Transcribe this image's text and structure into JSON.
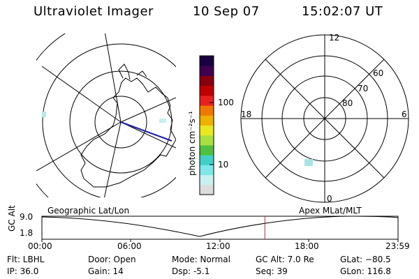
{
  "header": {
    "title": "Ultraviolet Imager",
    "date": "10 Sep 07",
    "time": "15:02:07 UT"
  },
  "colorbar": {
    "label": "photon cm⁻²s⁻¹",
    "ticks": [
      "100",
      "10"
    ],
    "colors": [
      "#dcdcdc",
      "#c8f0f0",
      "#7ee8e8",
      "#40d0c8",
      "#50c040",
      "#a8e040",
      "#e8e820",
      "#f0b000",
      "#f07800",
      "#e82020",
      "#c00000",
      "#880010",
      "#400050",
      "#1a0040"
    ]
  },
  "polar_plot": {
    "mlt_labels": {
      "top": "12",
      "left": "18",
      "right": "6",
      "bottom": "0"
    },
    "lat_labels": [
      "60",
      "70",
      "80"
    ]
  },
  "timeline": {
    "left_title": "Geographic Lat/Lon",
    "right_title": "Apex MLat/MLT",
    "y_axis_label": "GC Alt",
    "y_max": "9.0",
    "y_min": "1.8",
    "x_ticks": [
      "00:00",
      "06:00",
      "12:00",
      "18:00",
      "23:59"
    ],
    "current_time_fraction": 0.626
  },
  "footer": {
    "filter": "Flt: LBHL",
    "ip": "IP: 36.0",
    "door": "Door: Open",
    "gain": "Gain: 14",
    "mode": "Mode: Normal",
    "dsp": "Dsp:    -5.1",
    "gc_alt": "GC Alt: 7.0 Re",
    "seq": "Seq: 39",
    "glat": "GLat: −80.5",
    "glon": "GLon: 116.8"
  }
}
